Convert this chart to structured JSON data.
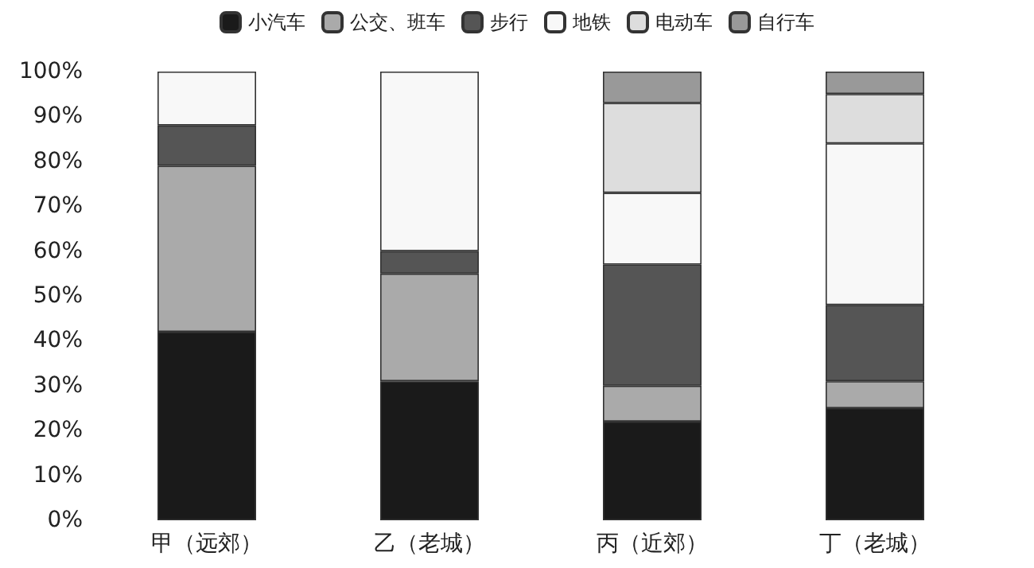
{
  "chart_data": {
    "type": "bar",
    "stacked": true,
    "categories": [
      "甲（远郊）",
      "乙（老城）",
      "丙（近郊）",
      "丁（老城）"
    ],
    "series": [
      {
        "name": "小汽车",
        "color": "#1a1a1a",
        "values": [
          42,
          31,
          22,
          25
        ]
      },
      {
        "name": "公交、班车",
        "color": "#aaaaaa",
        "values": [
          37,
          24,
          8,
          6
        ]
      },
      {
        "name": "步行",
        "color": "#555555",
        "values": [
          9,
          5,
          27,
          17
        ]
      },
      {
        "name": "地铁",
        "color": "#f8f8f8",
        "values": [
          12,
          40,
          16,
          36
        ]
      },
      {
        "name": "电动车",
        "color": "#dddddd",
        "values": [
          0,
          0,
          20,
          11
        ]
      },
      {
        "name": "自行车",
        "color": "#999999",
        "values": [
          0,
          0,
          7,
          5
        ]
      }
    ],
    "ylim": [
      0,
      100
    ],
    "yticks": [
      {
        "value": 0,
        "label": "0%"
      },
      {
        "value": 10,
        "label": "10%"
      },
      {
        "value": 20,
        "label": "20%"
      },
      {
        "value": 30,
        "label": "30%"
      },
      {
        "value": 40,
        "label": "40%"
      },
      {
        "value": 50,
        "label": "50%"
      },
      {
        "value": 60,
        "label": "60%"
      },
      {
        "value": 70,
        "label": "70%"
      },
      {
        "value": 80,
        "label": "80%"
      },
      {
        "value": 90,
        "label": "90%"
      },
      {
        "value": 100,
        "label": "100%"
      }
    ],
    "grid": false,
    "legend": "top"
  }
}
